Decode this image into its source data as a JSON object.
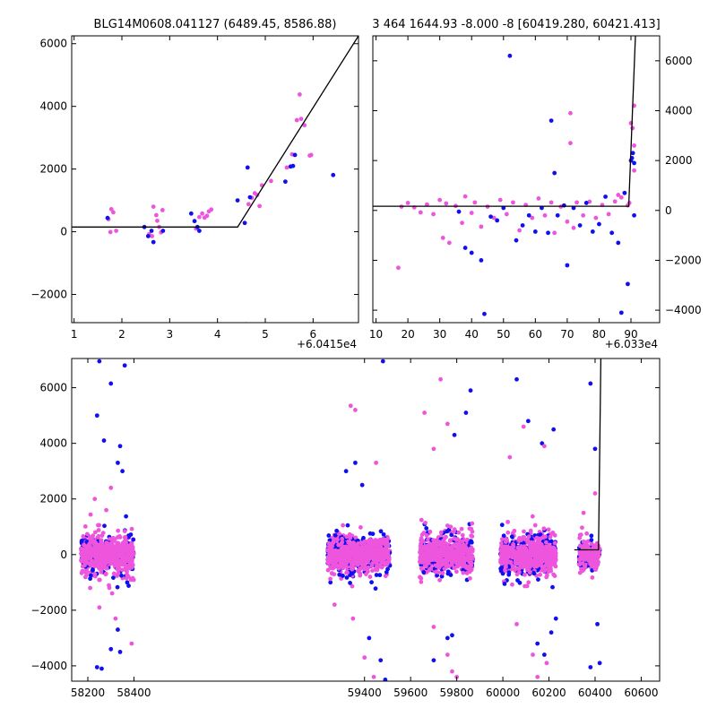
{
  "colors": {
    "blue": "#1010ee",
    "pink": "#ee55dd",
    "line": "#000000",
    "background": "#ffffff"
  },
  "chart_data": [
    {
      "type": "scatter",
      "title": "BLG14M0608.041127 (6489.45, 8586.88)",
      "x_offset_label": "+6.0415e4",
      "xlim": [
        0.95,
        6.95
      ],
      "ylim": [
        -2900,
        6250
      ],
      "xticks": [
        "1",
        "2",
        "3",
        "4",
        "5",
        "6"
      ],
      "yticks": [
        "−2000",
        "0",
        "2000",
        "4000",
        "6000"
      ],
      "series": [
        {
          "color": "pink",
          "points": [
            [
              1.72,
              400
            ],
            [
              1.76,
              -10
            ],
            [
              1.78,
              720
            ],
            [
              1.82,
              620
            ],
            [
              1.88,
              30
            ],
            [
              2.57,
              -80
            ],
            [
              2.63,
              -140
            ],
            [
              2.66,
              800
            ],
            [
              2.72,
              530
            ],
            [
              2.74,
              350
            ],
            [
              2.78,
              150
            ],
            [
              2.82,
              -20
            ],
            [
              2.85,
              690
            ],
            [
              3.55,
              100
            ],
            [
              3.62,
              470
            ],
            [
              3.68,
              580
            ],
            [
              3.73,
              450
            ],
            [
              3.78,
              510
            ],
            [
              3.82,
              650
            ],
            [
              3.87,
              710
            ],
            [
              4.65,
              880
            ],
            [
              4.72,
              1080
            ],
            [
              4.78,
              1230
            ],
            [
              4.83,
              1170
            ],
            [
              4.88,
              820
            ],
            [
              4.93,
              1480
            ],
            [
              5.12,
              1620
            ],
            [
              5.45,
              2050
            ],
            [
              5.56,
              2470
            ],
            [
              5.66,
              3560
            ],
            [
              5.72,
              4380
            ],
            [
              5.75,
              3600
            ],
            [
              5.82,
              3400
            ],
            [
              5.93,
              2430
            ],
            [
              5.96,
              2450
            ]
          ]
        },
        {
          "color": "blue",
          "points": [
            [
              1.7,
              440
            ],
            [
              2.47,
              150
            ],
            [
              2.55,
              -140
            ],
            [
              2.62,
              30
            ],
            [
              2.66,
              -330
            ],
            [
              2.86,
              30
            ],
            [
              3.45,
              580
            ],
            [
              3.52,
              340
            ],
            [
              3.58,
              150
            ],
            [
              3.62,
              30
            ],
            [
              4.42,
              1000
            ],
            [
              4.57,
              280
            ],
            [
              4.63,
              2050
            ],
            [
              4.68,
              1100
            ],
            [
              4.6,
              -2950
            ],
            [
              5.42,
              1600
            ],
            [
              5.53,
              2080
            ],
            [
              5.58,
              2100
            ],
            [
              5.62,
              2450
            ],
            [
              6.42,
              1810
            ]
          ]
        }
      ],
      "model_line": [
        [
          0.95,
          150
        ],
        [
          4.42,
          150
        ],
        [
          6.95,
          6250
        ]
      ]
    },
    {
      "type": "scatter",
      "title": "3 464 1644.93 -8.000 -8 [60419.280, 60421.413]",
      "x_offset_label": "+6.033e4",
      "xlim": [
        9,
        99
      ],
      "ylim": [
        -4500,
        7000
      ],
      "xticks": [
        "10",
        "20",
        "30",
        "40",
        "50",
        "60",
        "70",
        "80",
        "90"
      ],
      "yticks": [
        "−4000",
        "−2000",
        "0",
        "2000",
        "4000",
        "6000"
      ],
      "series": [
        {
          "color": "pink",
          "points": [
            [
              17,
              -2300
            ],
            [
              18,
              150
            ],
            [
              20,
              300
            ],
            [
              22,
              120
            ],
            [
              24,
              -80
            ],
            [
              26,
              240
            ],
            [
              28,
              -150
            ],
            [
              30,
              420
            ],
            [
              31,
              -1100
            ],
            [
              32,
              280
            ],
            [
              33,
              -1300
            ],
            [
              35,
              180
            ],
            [
              37,
              -500
            ],
            [
              38,
              560
            ],
            [
              40,
              -100
            ],
            [
              41,
              320
            ],
            [
              43,
              -650
            ],
            [
              45,
              150
            ],
            [
              47,
              -300
            ],
            [
              49,
              420
            ],
            [
              51,
              -150
            ],
            [
              53,
              320
            ],
            [
              55,
              -800
            ],
            [
              57,
              220
            ],
            [
              59,
              -300
            ],
            [
              61,
              480
            ],
            [
              63,
              -200
            ],
            [
              65,
              320
            ],
            [
              66,
              -900
            ],
            [
              68,
              150
            ],
            [
              70,
              -450
            ],
            [
              71,
              3900
            ],
            [
              71,
              2700
            ],
            [
              72,
              -700
            ],
            [
              73,
              320
            ],
            [
              75,
              -200
            ],
            [
              77,
              350
            ],
            [
              79,
              -300
            ],
            [
              81,
              220
            ],
            [
              83,
              -150
            ],
            [
              85,
              360
            ],
            [
              86,
              620
            ],
            [
              87,
              520
            ],
            [
              88,
              700
            ],
            [
              89,
              200
            ],
            [
              89.5,
              300
            ],
            [
              90,
              3500
            ],
            [
              90.5,
              3300
            ],
            [
              91,
              2600
            ],
            [
              91,
              4200
            ],
            [
              91,
              1600
            ]
          ]
        },
        {
          "color": "blue",
          "points": [
            [
              36,
              -50
            ],
            [
              38,
              -1500
            ],
            [
              40,
              -1700
            ],
            [
              43,
              -2000
            ],
            [
              44,
              -4150
            ],
            [
              46,
              -250
            ],
            [
              48,
              -400
            ],
            [
              50,
              100
            ],
            [
              52,
              6200
            ],
            [
              54,
              -1200
            ],
            [
              56,
              -600
            ],
            [
              58,
              -200
            ],
            [
              60,
              -850
            ],
            [
              62,
              100
            ],
            [
              64,
              -900
            ],
            [
              65,
              3600
            ],
            [
              66,
              1500
            ],
            [
              67,
              -200
            ],
            [
              69,
              200
            ],
            [
              70,
              -2200
            ],
            [
              72,
              100
            ],
            [
              74,
              -600
            ],
            [
              76,
              300
            ],
            [
              78,
              -850
            ],
            [
              80,
              -550
            ],
            [
              82,
              550
            ],
            [
              84,
              -900
            ],
            [
              86,
              -1300
            ],
            [
              87,
              -4100
            ],
            [
              88,
              700
            ],
            [
              89,
              -2950
            ],
            [
              90,
              2000
            ],
            [
              90.3,
              2100
            ],
            [
              90.6,
              2300
            ],
            [
              91,
              1900
            ],
            [
              91,
              -200
            ]
          ]
        }
      ],
      "model_line": [
        [
          9,
          170
        ],
        [
          89.3,
          170
        ],
        [
          91.4,
          7000
        ]
      ]
    },
    {
      "type": "scatter",
      "x_offset_label": "",
      "xlim": [
        58130,
        60680
      ],
      "ylim": [
        -4550,
        7050
      ],
      "xticks": [
        "58200",
        "58400",
        "59400",
        "59600",
        "59800",
        "60000",
        "60200",
        "60400",
        "60600"
      ],
      "yticks": [
        "−4000",
        "−2000",
        "0",
        "2000",
        "4000",
        "6000"
      ],
      "seasons": [
        {
          "range": [
            58170,
            58400
          ],
          "spread": 520,
          "count": 480
        },
        {
          "range": [
            59240,
            59510
          ],
          "spread": 480,
          "count": 560
        },
        {
          "range": [
            59640,
            59870
          ],
          "spread": 480,
          "count": 520
        },
        {
          "range": [
            59990,
            60230
          ],
          "spread": 520,
          "count": 480
        },
        {
          "range": [
            60330,
            60420
          ],
          "spread": 380,
          "count": 170
        }
      ],
      "outliers": [
        {
          "color": "blue",
          "points": [
            [
              58250,
              6950
            ],
            [
              58300,
              6150
            ],
            [
              58360,
              6800
            ],
            [
              58240,
              5000
            ],
            [
              58270,
              4100
            ],
            [
              58330,
              3300
            ],
            [
              58340,
              3900
            ],
            [
              58350,
              3000
            ],
            [
              58260,
              -4100
            ],
            [
              58240,
              -4050
            ],
            [
              58300,
              -3400
            ],
            [
              58340,
              -3500
            ],
            [
              58330,
              -2700
            ],
            [
              59320,
              3000
            ],
            [
              59360,
              3300
            ],
            [
              59390,
              2500
            ],
            [
              59480,
              6950
            ],
            [
              59420,
              -3000
            ],
            [
              59470,
              -3800
            ],
            [
              59490,
              -4500
            ],
            [
              59840,
              5100
            ],
            [
              59860,
              5900
            ],
            [
              59790,
              4300
            ],
            [
              59700,
              -3800
            ],
            [
              59760,
              -3000
            ],
            [
              59780,
              -2900
            ],
            [
              60060,
              6300
            ],
            [
              60110,
              4800
            ],
            [
              60170,
              4000
            ],
            [
              60220,
              4500
            ],
            [
              60150,
              -3200
            ],
            [
              60180,
              -3600
            ],
            [
              60230,
              -2300
            ],
            [
              60210,
              -2800
            ],
            [
              60380,
              6150
            ],
            [
              60400,
              3800
            ],
            [
              60410,
              -2500
            ],
            [
              60380,
              -4050
            ],
            [
              60420,
              -3900
            ]
          ]
        },
        {
          "color": "pink",
          "points": [
            [
              58230,
              2000
            ],
            [
              58280,
              1600
            ],
            [
              58300,
              2400
            ],
            [
              58210,
              -1200
            ],
            [
              58250,
              -1900
            ],
            [
              58390,
              -3200
            ],
            [
              58320,
              -2300
            ],
            [
              59360,
              5200
            ],
            [
              59340,
              5350
            ],
            [
              59450,
              3300
            ],
            [
              59270,
              -1800
            ],
            [
              59350,
              -2300
            ],
            [
              59400,
              -3700
            ],
            [
              59440,
              -4400
            ],
            [
              59730,
              6300
            ],
            [
              59660,
              5100
            ],
            [
              59760,
              4700
            ],
            [
              59700,
              3800
            ],
            [
              59700,
              -2600
            ],
            [
              59760,
              -3600
            ],
            [
              59780,
              -4200
            ],
            [
              59800,
              -4400
            ],
            [
              60090,
              4600
            ],
            [
              60030,
              3500
            ],
            [
              60180,
              3900
            ],
            [
              60060,
              -2500
            ],
            [
              60130,
              -3600
            ],
            [
              60150,
              -4400
            ],
            [
              60190,
              -3900
            ],
            [
              60350,
              1500
            ],
            [
              60400,
              2200
            ]
          ]
        }
      ],
      "model_line": [
        [
          60310,
          170
        ],
        [
          60415,
          170
        ],
        [
          60425,
          7050
        ]
      ]
    }
  ]
}
